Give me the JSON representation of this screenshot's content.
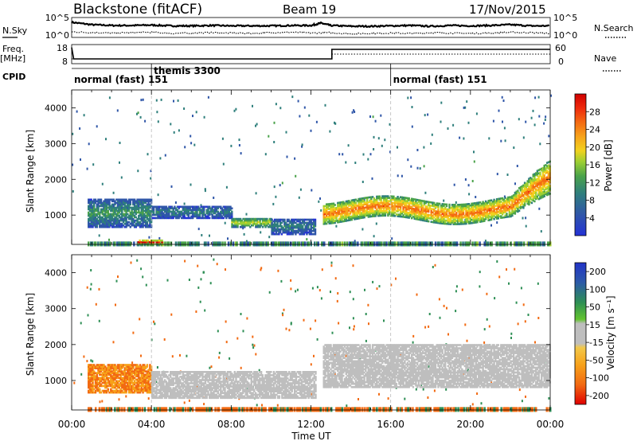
{
  "header": {
    "station": "Blackstone (fitACF)",
    "beam": "Beam 19",
    "date": "17/Nov/2015"
  },
  "left_labels": {
    "nsky": "N.Sky",
    "freq": "Freq.",
    "freq_unit": "[MHz]",
    "cpid": "CPID"
  },
  "right_labels": {
    "nsearch": "N.Search",
    "nave": "Nave"
  },
  "colors": {
    "power_scale": [
      "#2432d6",
      "#2f56a8",
      "#2f7f7c",
      "#4aa24a",
      "#9ccf33",
      "#f2d21e",
      "#f7a21a",
      "#f46a12",
      "#ee2a0c",
      "#d00000"
    ],
    "velocity_scale": [
      "#e00000",
      "#f26a12",
      "#f7a21a",
      "#f2c84a",
      "#bebebe",
      "#bebebe",
      "#62c42f",
      "#2e8f55",
      "#2c5aa8",
      "#2233c8"
    ],
    "ground_scatter": "#bebebe"
  },
  "chart_data": [
    {
      "type": "line",
      "panel": "noise",
      "title": "",
      "ylabel_left": [
        "10^0",
        "10^5"
      ],
      "ylabel_right": [
        "10^0",
        "10^5"
      ],
      "yscale": "log",
      "ylim": [
        0,
        5
      ],
      "series": [
        {
          "name": "N.Sky",
          "style": "solid",
          "x": [
            0,
            1,
            2,
            3,
            4,
            5,
            6,
            7,
            8,
            9,
            10,
            11,
            12,
            12.5,
            13,
            14,
            15,
            16,
            17,
            18,
            19,
            20,
            21,
            22,
            23,
            24
          ],
          "values": [
            3.8,
            3.2,
            3.0,
            3.0,
            3.1,
            2.9,
            2.9,
            3.0,
            2.9,
            2.9,
            2.9,
            3.0,
            3.0,
            3.6,
            3.0,
            2.8,
            2.8,
            2.9,
            3.0,
            2.8,
            3.0,
            2.9,
            3.0,
            3.2,
            2.9,
            2.9
          ]
        },
        {
          "name": "N.Search",
          "style": "dotted",
          "x": [
            0,
            1,
            2,
            3,
            4,
            5,
            6,
            7,
            8,
            9,
            10,
            11,
            12,
            13,
            14,
            15,
            16,
            17,
            18,
            19,
            20,
            21,
            22,
            23,
            24
          ],
          "values": [
            1.4,
            1.2,
            1.1,
            1.2,
            1.3,
            1.0,
            1.1,
            1.2,
            1.1,
            1.0,
            1.2,
            1.3,
            1.1,
            1.2,
            0.9,
            1.0,
            1.1,
            1.0,
            1.2,
            1.1,
            1.0,
            1.1,
            1.3,
            1.2,
            1.0
          ]
        }
      ]
    },
    {
      "type": "line",
      "panel": "frequency",
      "ylabel_left": [
        "8",
        "18"
      ],
      "ylabel_right": [
        "0",
        "60"
      ],
      "ylim": [
        8,
        18
      ],
      "series": [
        {
          "name": "Freq.",
          "style": "solid",
          "x": [
            0,
            0.1,
            13.05,
            13.05,
            24
          ],
          "values": [
            16.5,
            10.5,
            10.5,
            15.5,
            15.5
          ]
        },
        {
          "name": "Nave",
          "style": "dotted",
          "x": [
            0,
            13.05,
            13.05,
            24
          ],
          "values": [
            10.5,
            10.5,
            13.0,
            13.0
          ]
        }
      ]
    },
    {
      "type": "table",
      "panel": "cpid",
      "segments": [
        {
          "start": 0,
          "end": 4,
          "label": "normal (fast) 151"
        },
        {
          "start": 4,
          "end": 16,
          "label": "themis 3300"
        },
        {
          "start": 16,
          "end": 24,
          "label": "normal (fast) 151"
        }
      ]
    },
    {
      "type": "heatmap",
      "panel": "power",
      "ylabel": "Slant Range [km]",
      "xlabel": "",
      "xlim": [
        0,
        24
      ],
      "ylim": [
        180,
        4500
      ],
      "yticks": [
        "1000",
        "2000",
        "3000",
        "4000"
      ],
      "colorbar_label": "Power [dB]",
      "colorbar_ticks": [
        "4",
        "8",
        "12",
        "16",
        "20",
        "24",
        "28"
      ],
      "colorbar_range": [
        0,
        32
      ],
      "features": [
        {
          "t0": 0.8,
          "t1": 4.0,
          "r0": 650,
          "r1": 1450,
          "value": 10
        },
        {
          "t0": 4.0,
          "t1": 8.0,
          "r0": 900,
          "r1": 1250,
          "value": 8
        },
        {
          "t0": 8.0,
          "t1": 10.0,
          "r0": 650,
          "r1": 900,
          "value": 16
        },
        {
          "t0": 10.0,
          "t1": 12.2,
          "r0": 450,
          "r1": 900,
          "value": 8
        },
        {
          "t0": 12.6,
          "t1": 24.0,
          "r0": 800,
          "r1": 2000,
          "value": 24
        },
        {
          "t0": 3.3,
          "t1": 4.5,
          "r0": 180,
          "r1": 280,
          "value": 30
        }
      ]
    },
    {
      "type": "heatmap",
      "panel": "velocity",
      "ylabel": "Slant Range [km]",
      "xlabel": "Time UT",
      "xlim": [
        0,
        24
      ],
      "ylim": [
        180,
        4500
      ],
      "xticks": [
        "00:00",
        "04:00",
        "08:00",
        "12:00",
        "16:00",
        "20:00",
        "00:00"
      ],
      "yticks": [
        "1000",
        "2000",
        "3000",
        "4000"
      ],
      "colorbar_label": "Velocity [m s⁻¹]",
      "colorbar_ticks": [
        "-200",
        "-100",
        "-50",
        "-15",
        "15",
        "50",
        "100",
        "200"
      ],
      "features": [
        {
          "t0": 0.8,
          "t1": 4.0,
          "r0": 650,
          "r1": 1450,
          "value": -50
        },
        {
          "t0": 4.0,
          "t1": 12.2,
          "r0": 500,
          "r1": 1250,
          "value": 0
        },
        {
          "t0": 12.6,
          "t1": 24.0,
          "r0": 800,
          "r1": 2000,
          "value": 0
        }
      ]
    }
  ]
}
